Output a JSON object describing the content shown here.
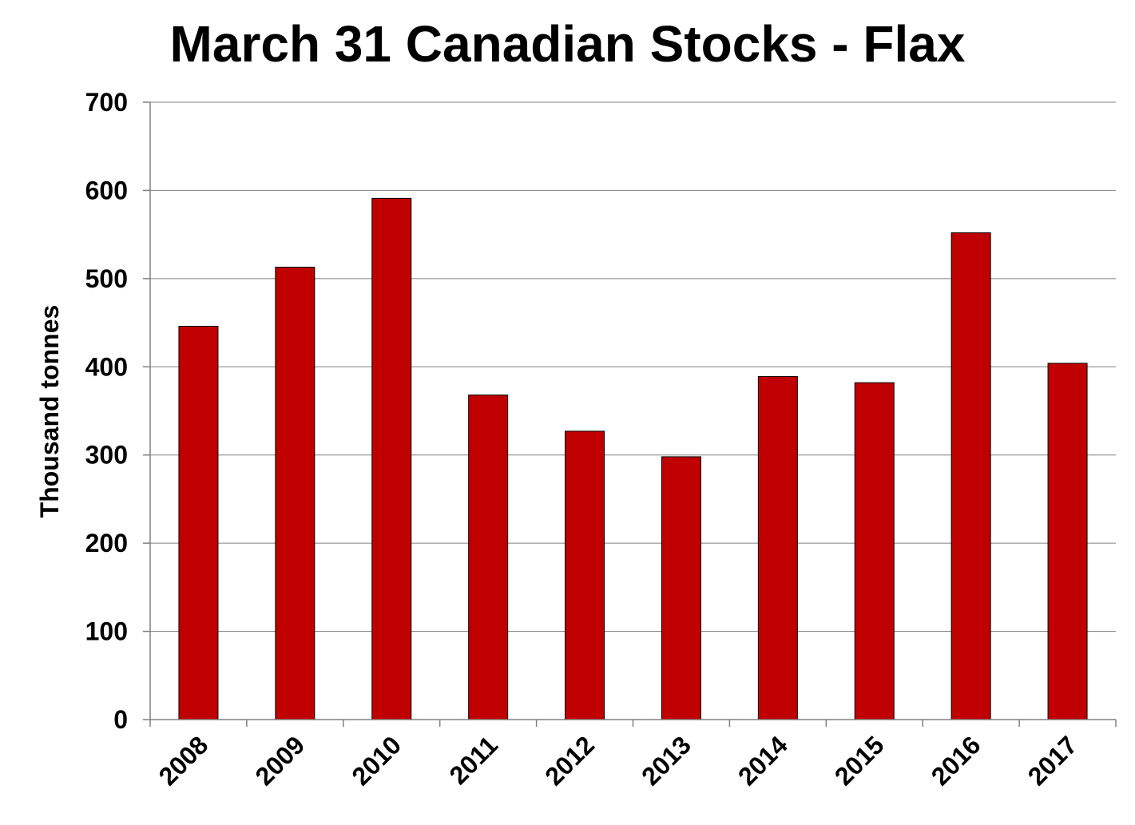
{
  "chart_data": {
    "type": "bar",
    "title": "March 31 Canadian Stocks - Flax",
    "xlabel": "",
    "ylabel": "Thousand tonnes",
    "categories": [
      "2008",
      "2009",
      "2010",
      "2011",
      "2012",
      "2013",
      "2014",
      "2015",
      "2016",
      "2017"
    ],
    "series": [
      {
        "values": [
          446,
          513,
          591,
          368,
          327,
          298,
          389,
          382,
          552,
          404
        ]
      }
    ],
    "ylim": [
      0,
      700
    ],
    "yticks": [
      0,
      100,
      200,
      300,
      400,
      500,
      600,
      700
    ],
    "grid": true,
    "legend": "none",
    "colors": {
      "bar": "#c00000",
      "grid": "#808080",
      "axis": "#808080"
    }
  }
}
